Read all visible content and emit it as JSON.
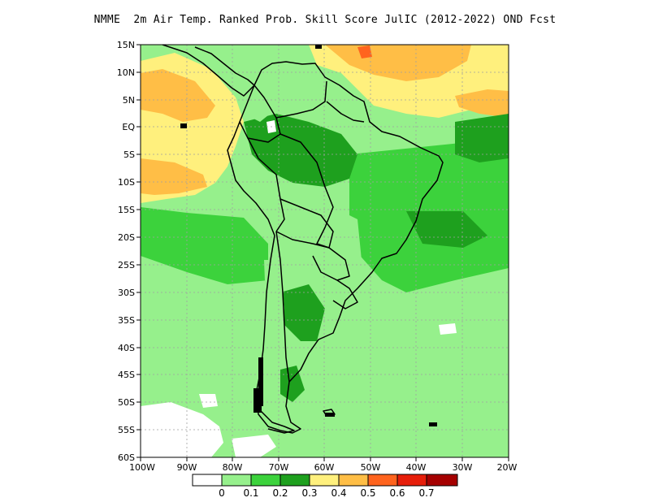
{
  "title": "NMME  2m Air Temp. Ranked Prob. Skill Score JulIC (2012-2022) OND Fcst",
  "map": {
    "region": "South America",
    "lat_labels": [
      "15N",
      "10N",
      "5N",
      "EQ",
      "5S",
      "10S",
      "15S",
      "20S",
      "25S",
      "30S",
      "35S",
      "40S",
      "45S",
      "50S",
      "55S",
      "60S"
    ],
    "lon_labels": [
      "100W",
      "90W",
      "80W",
      "70W",
      "60W",
      "50W",
      "40W",
      "30W",
      "20W"
    ],
    "grid": "dotted"
  },
  "colorbar": {
    "labels": [
      "0",
      "0.1",
      "0.2",
      "0.3",
      "0.4",
      "0.5",
      "0.6",
      "0.7"
    ],
    "colors": [
      "#ffffff",
      "#96f08c",
      "#3cd23c",
      "#1ea01e",
      "#fff07d",
      "#ffbe46",
      "#ff641e",
      "#e61e0a",
      "#a50000"
    ]
  },
  "colors": {
    "skill_0_0.1": "#96f08c",
    "skill_0.1_0.2": "#3cd23c",
    "skill_0.2_0.3": "#1ea01e",
    "skill_0.3_0.4": "#fff07d",
    "skill_0.4_0.5": "#ffbe46",
    "skill_0.5_0.6": "#ff641e",
    "skill_below_0": "#ffffff",
    "coastline": "#000000"
  }
}
